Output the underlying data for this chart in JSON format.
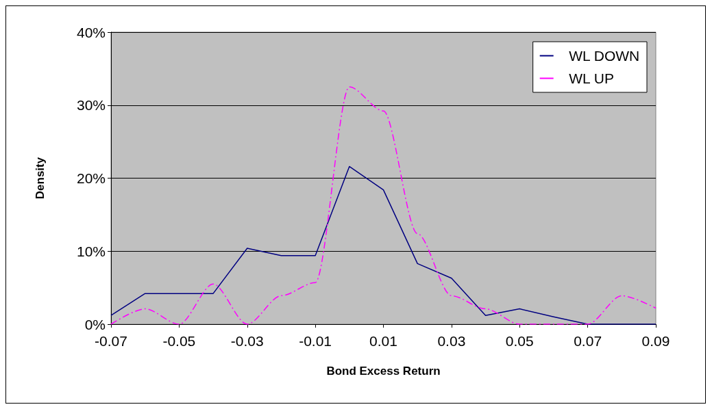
{
  "chart_data": {
    "type": "line",
    "xlabel": "Bond Excess Return",
    "ylabel": "Density",
    "x": [
      -0.07,
      -0.06,
      -0.05,
      -0.04,
      -0.03,
      -0.02,
      -0.01,
      0,
      0.01,
      0.02,
      0.03,
      0.04,
      0.05,
      0.06,
      0.07,
      0.08,
      0.09
    ],
    "series": [
      {
        "name": "WL DOWN",
        "color": "#000080",
        "line_style": "solid",
        "values": [
          1.2,
          4.2,
          4.2,
          4.2,
          10.4,
          9.4,
          9.4,
          21.6,
          18.4,
          8.3,
          6.3,
          1.2,
          2.1,
          1,
          0,
          0,
          0
        ]
      },
      {
        "name": "WL UP",
        "color": "#ff00ff",
        "line_style": "dashed",
        "values": [
          0,
          2.1,
          0,
          5.5,
          0,
          3.9,
          5.7,
          32.5,
          29.2,
          12.4,
          3.9,
          2.1,
          0,
          0,
          0,
          3.9,
          2.2
        ]
      }
    ],
    "xlim": [
      -0.07,
      0.09
    ],
    "xticks": [
      -0.07,
      -0.05,
      -0.03,
      -0.01,
      0.01,
      0.03,
      0.05,
      0.07,
      0.09
    ],
    "ylim": [
      0,
      40
    ],
    "yticks": [
      {
        "value": 0,
        "label": "0%"
      },
      {
        "value": 10,
        "label": "10%"
      },
      {
        "value": 20,
        "label": "20%"
      },
      {
        "value": 30,
        "label": "30%"
      },
      {
        "value": 40,
        "label": "40%"
      }
    ],
    "grid": "y",
    "legend": "top right",
    "marker": "none"
  }
}
